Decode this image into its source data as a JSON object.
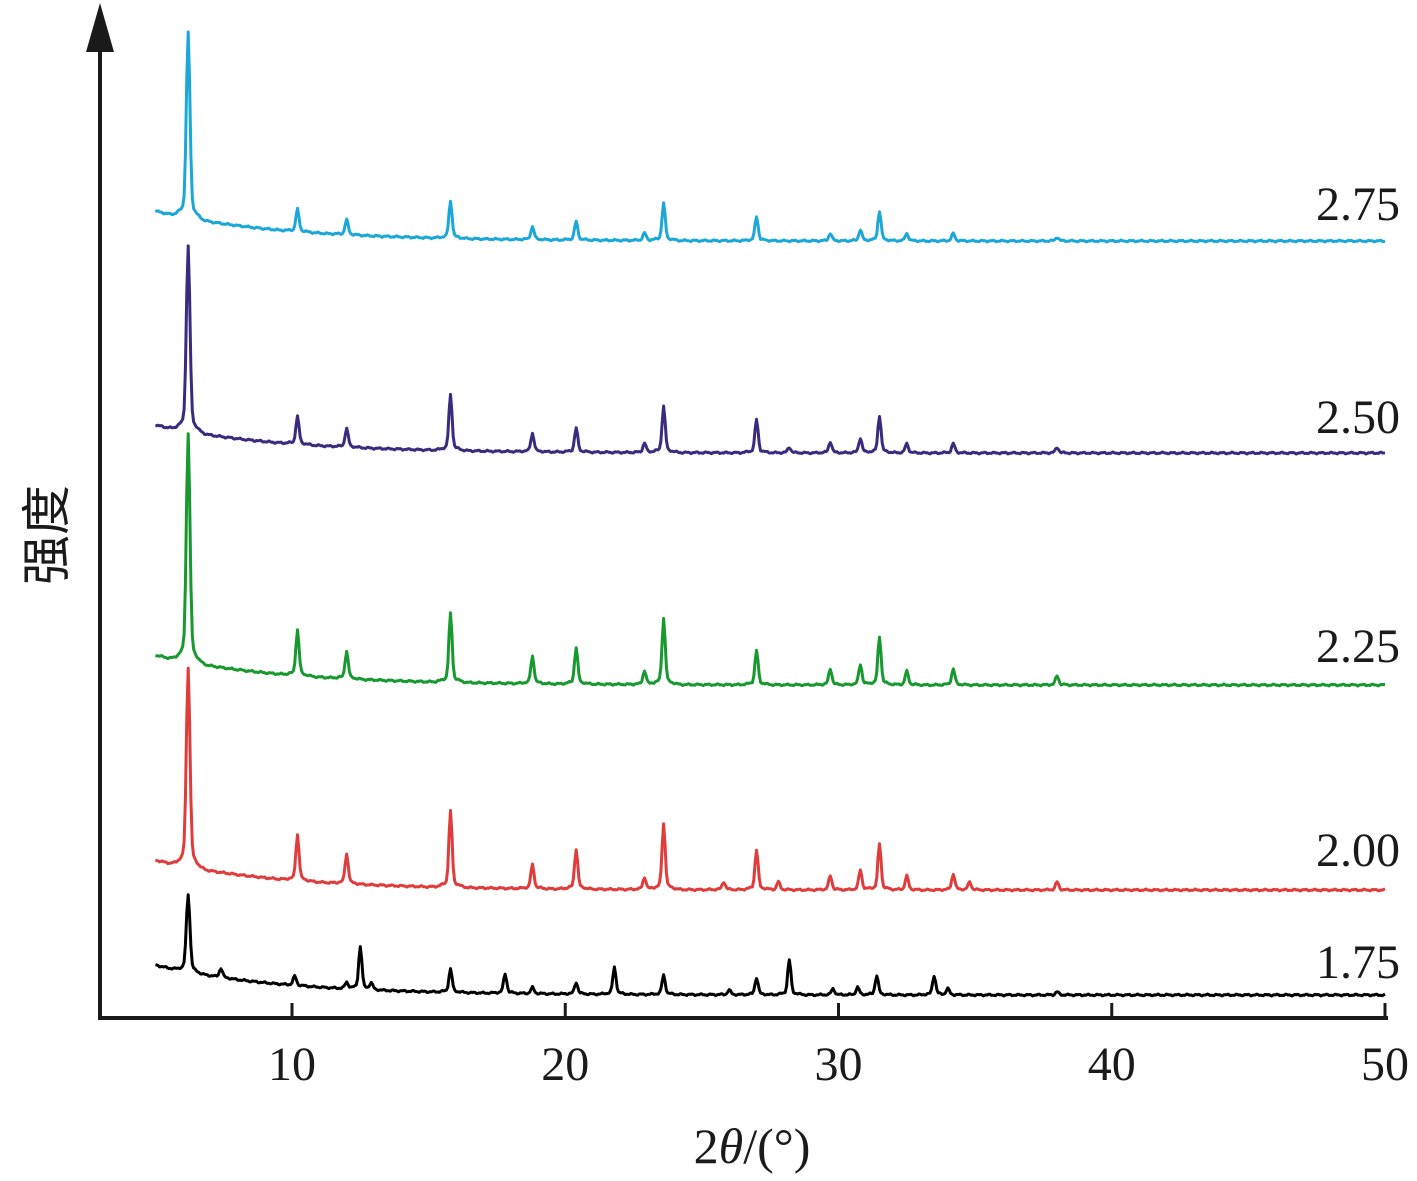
{
  "chart_data": {
    "type": "line",
    "xlabel_prefix": "2",
    "xlabel_theta": "θ",
    "xlabel_suffix": "/(°)",
    "ylabel": "强度",
    "xlim": [
      5,
      50
    ],
    "xticks": [
      10,
      20,
      30,
      40,
      50
    ],
    "grid": false,
    "legend": "none",
    "series": [
      {
        "name": "1.75",
        "color": "#000000",
        "baseline": 0.0,
        "decay": 0.05,
        "peaks": [
          [
            6.2,
            1.0
          ],
          [
            7.4,
            0.12
          ],
          [
            10.1,
            0.12
          ],
          [
            12.0,
            0.08
          ],
          [
            12.5,
            0.55
          ],
          [
            12.9,
            0.08
          ],
          [
            15.8,
            0.3
          ],
          [
            17.8,
            0.25
          ],
          [
            18.8,
            0.08
          ],
          [
            20.4,
            0.15
          ],
          [
            21.8,
            0.35
          ],
          [
            23.6,
            0.25
          ],
          [
            26.0,
            0.06
          ],
          [
            27.0,
            0.22
          ],
          [
            28.2,
            0.45
          ],
          [
            29.8,
            0.08
          ],
          [
            30.7,
            0.1
          ],
          [
            31.4,
            0.25
          ],
          [
            33.5,
            0.25
          ],
          [
            34.0,
            0.08
          ],
          [
            38.0,
            0.04
          ]
        ]
      },
      {
        "name": "2.00",
        "color": "#e03c3c",
        "baseline": 0.0,
        "decay": 0.05,
        "peaks": [
          [
            6.2,
            1.0
          ],
          [
            10.2,
            0.23
          ],
          [
            12.0,
            0.15
          ],
          [
            15.8,
            0.38
          ],
          [
            18.8,
            0.12
          ],
          [
            20.4,
            0.2
          ],
          [
            22.9,
            0.06
          ],
          [
            23.6,
            0.33
          ],
          [
            25.8,
            0.04
          ],
          [
            27.0,
            0.2
          ],
          [
            27.8,
            0.04
          ],
          [
            29.7,
            0.07
          ],
          [
            30.8,
            0.1
          ],
          [
            31.5,
            0.23
          ],
          [
            32.5,
            0.07
          ],
          [
            34.2,
            0.08
          ],
          [
            34.8,
            0.04
          ],
          [
            38.0,
            0.04
          ]
        ]
      },
      {
        "name": "2.25",
        "color": "#17992f",
        "baseline": 0.0,
        "decay": 0.05,
        "peaks": [
          [
            6.2,
            1.0
          ],
          [
            10.2,
            0.2
          ],
          [
            12.0,
            0.12
          ],
          [
            15.8,
            0.3
          ],
          [
            18.8,
            0.12
          ],
          [
            20.4,
            0.16
          ],
          [
            22.9,
            0.06
          ],
          [
            23.6,
            0.29
          ],
          [
            27.0,
            0.15
          ],
          [
            29.7,
            0.07
          ],
          [
            30.8,
            0.09
          ],
          [
            31.5,
            0.21
          ],
          [
            32.5,
            0.06
          ],
          [
            34.2,
            0.07
          ],
          [
            38.0,
            0.04
          ]
        ]
      },
      {
        "name": "2.50",
        "color": "#3b2a7e",
        "baseline": 0.0,
        "decay": 0.05,
        "peaks": [
          [
            6.2,
            1.0
          ],
          [
            10.2,
            0.15
          ],
          [
            12.0,
            0.1
          ],
          [
            15.8,
            0.3
          ],
          [
            18.8,
            0.1
          ],
          [
            20.4,
            0.13
          ],
          [
            22.9,
            0.05
          ],
          [
            23.6,
            0.25
          ],
          [
            27.0,
            0.18
          ],
          [
            28.2,
            0.03
          ],
          [
            29.7,
            0.06
          ],
          [
            30.8,
            0.08
          ],
          [
            31.5,
            0.2
          ],
          [
            32.5,
            0.05
          ],
          [
            34.2,
            0.05
          ],
          [
            38.0,
            0.03
          ]
        ]
      },
      {
        "name": "2.75",
        "color": "#1ba8d8",
        "baseline": 0.0,
        "decay": 0.05,
        "peaks": [
          [
            6.2,
            1.0
          ],
          [
            10.2,
            0.12
          ],
          [
            12.0,
            0.08
          ],
          [
            15.8,
            0.2
          ],
          [
            18.8,
            0.07
          ],
          [
            20.4,
            0.1
          ],
          [
            22.9,
            0.04
          ],
          [
            23.6,
            0.2
          ],
          [
            27.0,
            0.13
          ],
          [
            29.7,
            0.04
          ],
          [
            30.8,
            0.06
          ],
          [
            31.5,
            0.16
          ],
          [
            32.5,
            0.04
          ],
          [
            34.2,
            0.04
          ],
          [
            38.0,
            0.02
          ]
        ]
      }
    ]
  }
}
